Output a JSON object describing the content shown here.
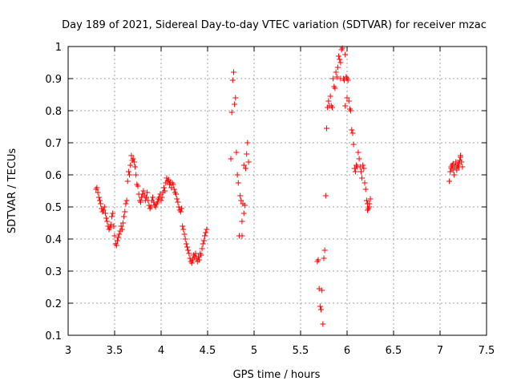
{
  "chart_data": {
    "type": "scatter",
    "title": "Day 189 of 2021, Sidereal Day-to-day VTEC variation (SDTVAR) for receiver mzac",
    "xlabel": "GPS time / hours",
    "ylabel": "SDTVAR / TECUs",
    "xlim": [
      3,
      7.5
    ],
    "ylim": [
      0.1,
      1.0
    ],
    "xticks": [
      3,
      3.5,
      4,
      4.5,
      5,
      5.5,
      6,
      6.5,
      7,
      7.5
    ],
    "xtick_labels": [
      "3",
      "3.5",
      "4",
      "4.5",
      "5",
      "5.5",
      "6",
      "6.5",
      "7",
      "7.5"
    ],
    "yticks": [
      0.1,
      0.2,
      0.3,
      0.4,
      0.5,
      0.6,
      0.7,
      0.8,
      0.9,
      1.0
    ],
    "ytick_labels": [
      "0.1",
      "0.2",
      "0.3",
      "0.4",
      "0.5",
      "0.6",
      "0.7",
      "0.8",
      "0.9",
      "1"
    ],
    "grid": true,
    "marker": "+",
    "color": "#ff0000",
    "series": [
      {
        "name": "SDTVAR",
        "points": [
          [
            3.3,
            0.555
          ],
          [
            3.31,
            0.56
          ],
          [
            3.32,
            0.545
          ],
          [
            3.33,
            0.53
          ],
          [
            3.34,
            0.52
          ],
          [
            3.35,
            0.51
          ],
          [
            3.36,
            0.495
          ],
          [
            3.37,
            0.485
          ],
          [
            3.38,
            0.49
          ],
          [
            3.39,
            0.5
          ],
          [
            3.4,
            0.48
          ],
          [
            3.41,
            0.465
          ],
          [
            3.42,
            0.455
          ],
          [
            3.43,
            0.44
          ],
          [
            3.44,
            0.43
          ],
          [
            3.45,
            0.435
          ],
          [
            3.46,
            0.445
          ],
          [
            3.47,
            0.47
          ],
          [
            3.48,
            0.48
          ],
          [
            3.49,
            0.44
          ],
          [
            3.5,
            0.41
          ],
          [
            3.51,
            0.385
          ],
          [
            3.52,
            0.38
          ],
          [
            3.53,
            0.395
          ],
          [
            3.54,
            0.405
          ],
          [
            3.55,
            0.415
          ],
          [
            3.56,
            0.425
          ],
          [
            3.57,
            0.44
          ],
          [
            3.58,
            0.43
          ],
          [
            3.59,
            0.45
          ],
          [
            3.6,
            0.47
          ],
          [
            3.61,
            0.485
          ],
          [
            3.62,
            0.51
          ],
          [
            3.63,
            0.52
          ],
          [
            3.64,
            0.58
          ],
          [
            3.65,
            0.61
          ],
          [
            3.66,
            0.6
          ],
          [
            3.67,
            0.63
          ],
          [
            3.68,
            0.66
          ],
          [
            3.69,
            0.645
          ],
          [
            3.7,
            0.65
          ],
          [
            3.71,
            0.64
          ],
          [
            3.72,
            0.625
          ],
          [
            3.73,
            0.6
          ],
          [
            3.74,
            0.57
          ],
          [
            3.75,
            0.565
          ],
          [
            3.76,
            0.54
          ],
          [
            3.77,
            0.52
          ],
          [
            3.78,
            0.515
          ],
          [
            3.79,
            0.53
          ],
          [
            3.8,
            0.54
          ],
          [
            3.81,
            0.55
          ],
          [
            3.82,
            0.535
          ],
          [
            3.83,
            0.52
          ],
          [
            3.84,
            0.53
          ],
          [
            3.85,
            0.545
          ],
          [
            3.86,
            0.52
          ],
          [
            3.87,
            0.505
          ],
          [
            3.88,
            0.495
          ],
          [
            3.89,
            0.5
          ],
          [
            3.9,
            0.52
          ],
          [
            3.91,
            0.53
          ],
          [
            3.92,
            0.515
          ],
          [
            3.93,
            0.505
          ],
          [
            3.94,
            0.5
          ],
          [
            3.95,
            0.51
          ],
          [
            3.96,
            0.515
          ],
          [
            3.97,
            0.525
          ],
          [
            3.98,
            0.53
          ],
          [
            3.99,
            0.54
          ],
          [
            4.0,
            0.52
          ],
          [
            4.01,
            0.53
          ],
          [
            4.02,
            0.545
          ],
          [
            4.03,
            0.56
          ],
          [
            4.04,
            0.55
          ],
          [
            4.05,
            0.575
          ],
          [
            4.06,
            0.59
          ],
          [
            4.07,
            0.58
          ],
          [
            4.08,
            0.585
          ],
          [
            4.09,
            0.57
          ],
          [
            4.1,
            0.575
          ],
          [
            4.11,
            0.56
          ],
          [
            4.12,
            0.575
          ],
          [
            4.13,
            0.57
          ],
          [
            4.14,
            0.555
          ],
          [
            4.15,
            0.545
          ],
          [
            4.16,
            0.54
          ],
          [
            4.17,
            0.525
          ],
          [
            4.18,
            0.515
          ],
          [
            4.19,
            0.5
          ],
          [
            4.2,
            0.49
          ],
          [
            4.21,
            0.485
          ],
          [
            4.22,
            0.495
          ],
          [
            4.23,
            0.44
          ],
          [
            4.24,
            0.43
          ],
          [
            4.25,
            0.415
          ],
          [
            4.26,
            0.4
          ],
          [
            4.27,
            0.385
          ],
          [
            4.28,
            0.375
          ],
          [
            4.29,
            0.365
          ],
          [
            4.3,
            0.355
          ],
          [
            4.31,
            0.34
          ],
          [
            4.32,
            0.33
          ],
          [
            4.33,
            0.325
          ],
          [
            4.34,
            0.335
          ],
          [
            4.35,
            0.35
          ],
          [
            4.36,
            0.345
          ],
          [
            4.37,
            0.355
          ],
          [
            4.38,
            0.34
          ],
          [
            4.39,
            0.33
          ],
          [
            4.4,
            0.345
          ],
          [
            4.41,
            0.335
          ],
          [
            4.42,
            0.355
          ],
          [
            4.43,
            0.35
          ],
          [
            4.44,
            0.37
          ],
          [
            4.45,
            0.385
          ],
          [
            4.46,
            0.395
          ],
          [
            4.47,
            0.41
          ],
          [
            4.48,
            0.42
          ],
          [
            4.49,
            0.43
          ],
          [
            4.75,
            0.65
          ],
          [
            4.76,
            0.795
          ],
          [
            4.77,
            0.895
          ],
          [
            4.78,
            0.92
          ],
          [
            4.79,
            0.82
          ],
          [
            4.8,
            0.84
          ],
          [
            4.81,
            0.67
          ],
          [
            4.82,
            0.6
          ],
          [
            4.83,
            0.575
          ],
          [
            4.84,
            0.41
          ],
          [
            4.85,
            0.535
          ],
          [
            4.86,
            0.52
          ],
          [
            4.87,
            0.455
          ],
          [
            4.88,
            0.51
          ],
          [
            4.89,
            0.48
          ],
          [
            4.9,
            0.505
          ],
          [
            4.91,
            0.62
          ],
          [
            4.92,
            0.665
          ],
          [
            4.93,
            0.7
          ],
          [
            4.94,
            0.64
          ],
          [
            4.87,
            0.41
          ],
          [
            4.89,
            0.63
          ],
          [
            5.68,
            0.33
          ],
          [
            5.69,
            0.335
          ],
          [
            5.7,
            0.245
          ],
          [
            5.71,
            0.19
          ],
          [
            5.72,
            0.18
          ],
          [
            5.73,
            0.24
          ],
          [
            5.74,
            0.135
          ],
          [
            5.75,
            0.34
          ],
          [
            5.76,
            0.365
          ],
          [
            5.77,
            0.535
          ],
          [
            5.78,
            0.745
          ],
          [
            5.79,
            0.81
          ],
          [
            5.8,
            0.83
          ],
          [
            5.81,
            0.815
          ],
          [
            5.82,
            0.845
          ],
          [
            5.83,
            0.815
          ],
          [
            5.84,
            0.81
          ],
          [
            5.85,
            0.9
          ],
          [
            5.86,
            0.875
          ],
          [
            5.87,
            0.87
          ],
          [
            5.88,
            0.92
          ],
          [
            5.89,
            0.905
          ],
          [
            5.9,
            0.935
          ],
          [
            5.91,
            0.97
          ],
          [
            5.92,
            0.96
          ],
          [
            5.93,
            0.95
          ],
          [
            5.94,
            0.99
          ],
          [
            5.95,
            0.995
          ],
          [
            5.96,
            0.9
          ],
          [
            5.97,
            0.895
          ],
          [
            5.98,
            0.975
          ],
          [
            5.99,
            0.905
          ],
          [
            6.0,
            0.84
          ],
          [
            6.01,
            0.895
          ],
          [
            6.02,
            0.83
          ],
          [
            6.03,
            0.805
          ],
          [
            6.04,
            0.8
          ],
          [
            6.05,
            0.74
          ],
          [
            6.06,
            0.73
          ],
          [
            6.07,
            0.695
          ],
          [
            6.08,
            0.62
          ],
          [
            6.09,
            0.61
          ],
          [
            6.1,
            0.63
          ],
          [
            6.11,
            0.625
          ],
          [
            6.12,
            0.67
          ],
          [
            6.13,
            0.65
          ],
          [
            6.14,
            0.625
          ],
          [
            6.15,
            0.61
          ],
          [
            6.16,
            0.59
          ],
          [
            6.17,
            0.63
          ],
          [
            5.98,
            0.815
          ],
          [
            5.93,
            0.9
          ],
          [
            6.0,
            0.9
          ],
          [
            6.18,
            0.62
          ],
          [
            6.19,
            0.575
          ],
          [
            6.2,
            0.555
          ],
          [
            6.21,
            0.52
          ],
          [
            6.22,
            0.51
          ],
          [
            6.23,
            0.495
          ],
          [
            6.24,
            0.5
          ],
          [
            6.25,
            0.525
          ],
          [
            6.22,
            0.49
          ],
          [
            6.24,
            0.51
          ],
          [
            7.1,
            0.58
          ],
          [
            7.11,
            0.61
          ],
          [
            7.12,
            0.62
          ],
          [
            7.13,
            0.63
          ],
          [
            7.14,
            0.615
          ],
          [
            7.15,
            0.6
          ],
          [
            7.16,
            0.625
          ],
          [
            7.17,
            0.64
          ],
          [
            7.18,
            0.62
          ],
          [
            7.19,
            0.63
          ],
          [
            7.2,
            0.635
          ],
          [
            7.21,
            0.645
          ],
          [
            7.22,
            0.655
          ],
          [
            7.23,
            0.64
          ],
          [
            7.24,
            0.625
          ],
          [
            7.12,
            0.625
          ],
          [
            7.14,
            0.635
          ],
          [
            7.18,
            0.615
          ],
          [
            7.2,
            0.625
          ],
          [
            7.22,
            0.66
          ]
        ]
      }
    ]
  }
}
